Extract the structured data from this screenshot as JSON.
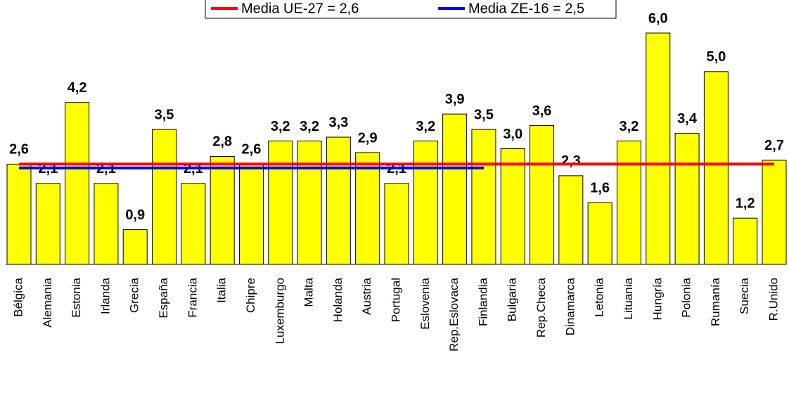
{
  "chart_data": {
    "type": "bar",
    "categories": [
      "Bélgica",
      "Alemania",
      "Estonia",
      "Irlanda",
      "Grecia",
      "España",
      "Francia",
      "Italia",
      "Chipre",
      "Luxemburgo",
      "Malta",
      "Holanda",
      "Austria",
      "Portugal",
      "Eslovenia",
      "Rep.Eslovaca",
      "Finlandia",
      "Bulgaria",
      "Rep.Checa",
      "Dinamarca",
      "Letonia",
      "Lituania",
      "Hungría",
      "Polonia",
      "Rumanía",
      "Suecia",
      "R.Unido"
    ],
    "values": [
      2.6,
      2.1,
      4.2,
      2.1,
      0.9,
      3.5,
      2.1,
      2.8,
      2.6,
      3.2,
      3.2,
      3.3,
      2.9,
      2.1,
      3.2,
      3.9,
      3.5,
      3.0,
      3.6,
      2.3,
      1.6,
      3.2,
      6.0,
      3.4,
      5.0,
      1.2,
      2.7
    ],
    "value_labels": [
      "2,6",
      "2,1",
      "4,2",
      "2,1",
      "0,9",
      "3,5",
      "2,1",
      "2,8",
      "2,6",
      "3,2",
      "3,2",
      "3,3",
      "2,9",
      "2,1",
      "3,2",
      "3,9",
      "3,5",
      "3,0",
      "3,6",
      "2,3",
      "1,6",
      "3,2",
      "6,0",
      "3,4",
      "5,0",
      "1,2",
      "2,7"
    ],
    "color": "#ffff00",
    "ylim": [
      0,
      6
    ],
    "series": [
      {
        "name": "Media UE-27 = 2,6",
        "color": "#ff0000",
        "values": [
          2.6,
          2.6,
          2.6,
          2.6,
          2.6,
          2.6,
          2.6,
          2.6,
          2.6,
          2.6,
          2.6,
          2.6,
          2.6,
          2.6,
          2.6,
          2.6,
          2.6,
          2.6,
          2.6,
          2.6,
          2.6,
          2.6,
          2.6,
          2.6,
          2.6,
          2.6,
          2.6
        ]
      },
      {
        "name": "Media ZE-16 = 2,5",
        "color": "#0000ff",
        "values": [
          2.5,
          2.5,
          2.5,
          2.5,
          2.5,
          2.5,
          2.5,
          2.5,
          2.5,
          2.5,
          2.5,
          2.5,
          2.5,
          2.5,
          2.5,
          2.5,
          2.5,
          null,
          null,
          null,
          null,
          null,
          null,
          null,
          null,
          null,
          null
        ]
      }
    ]
  }
}
